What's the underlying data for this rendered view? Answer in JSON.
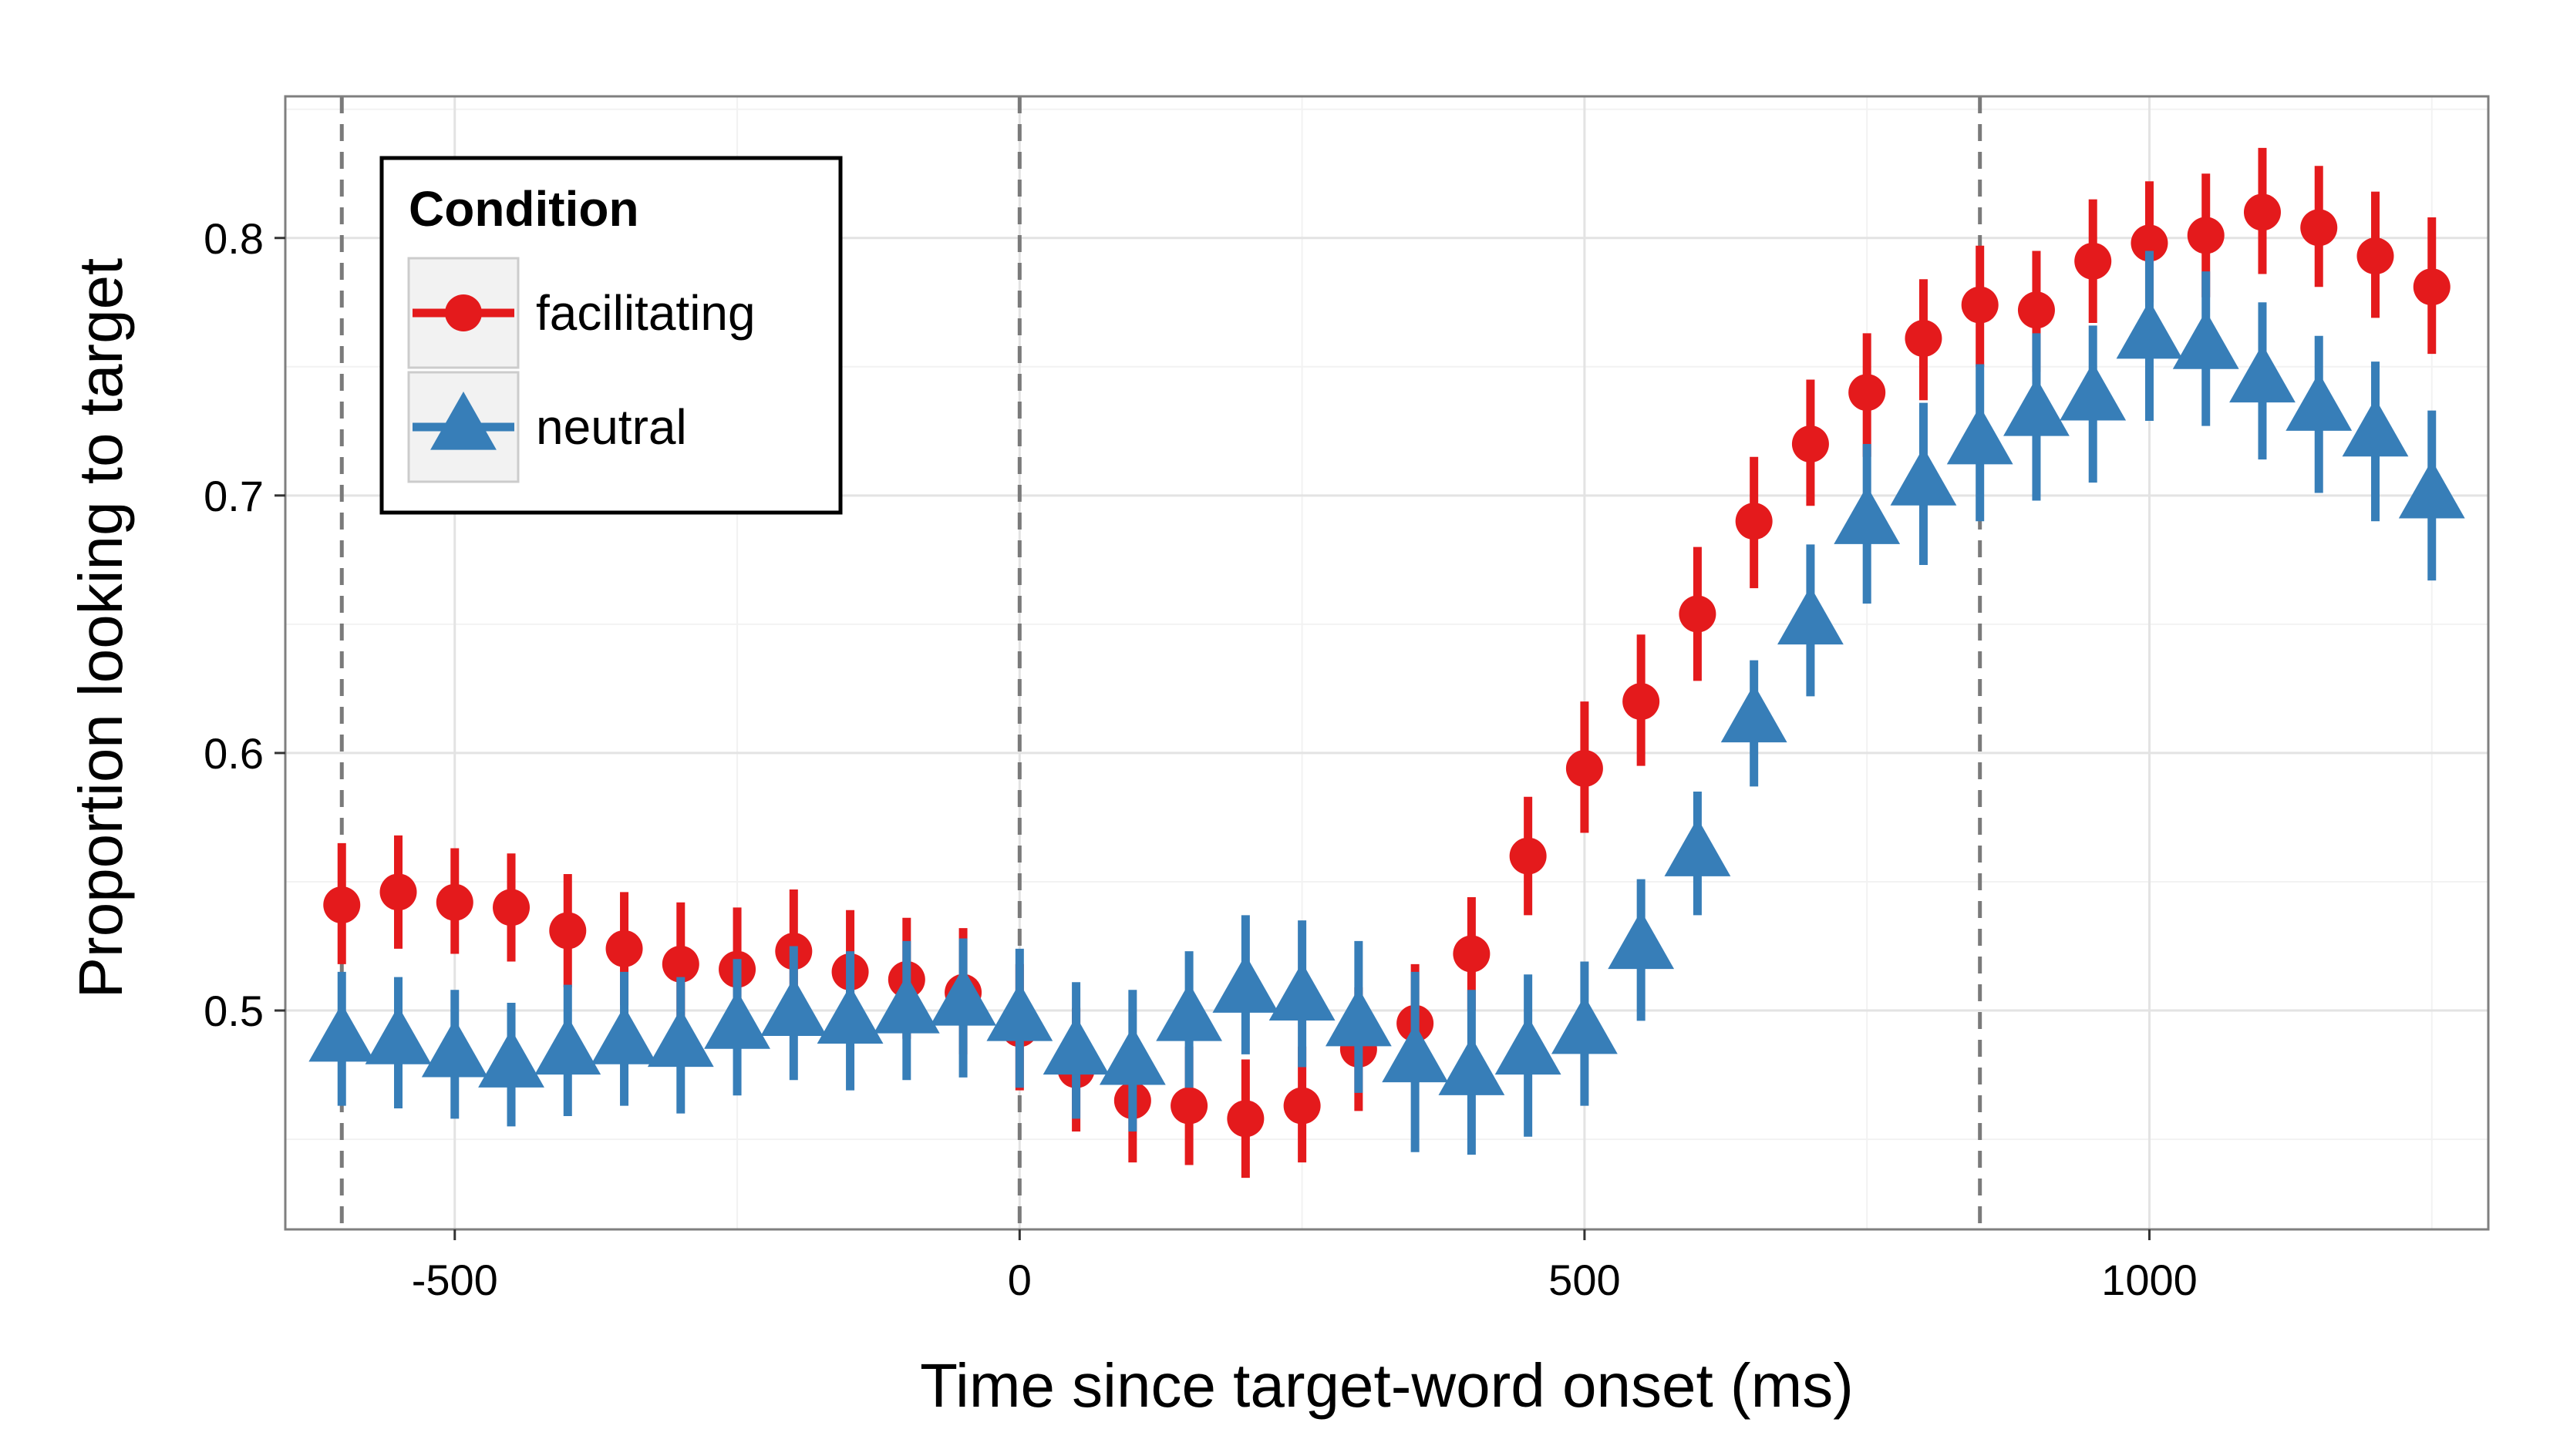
{
  "chart_data": {
    "type": "scatter",
    "xlabel": "Time since target-word onset (ms)",
    "ylabel": "Proportion looking to target",
    "xlim": [
      -650,
      1300
    ],
    "ylim": [
      0.415,
      0.855
    ],
    "xticks": [
      -500,
      0,
      500,
      1000
    ],
    "xtick_labels": [
      "-500",
      "0",
      "500",
      "1000"
    ],
    "yticks": [
      0.5,
      0.6,
      0.7,
      0.8
    ],
    "ytick_labels": [
      "0.5",
      "0.6",
      "0.7",
      "0.8"
    ],
    "vlines": [
      -600,
      0,
      850
    ],
    "grid": true,
    "legend": {
      "title": "Condition",
      "position": "top-left"
    },
    "x": [
      -600,
      -550,
      -500,
      -450,
      -400,
      -350,
      -300,
      -250,
      -200,
      -150,
      -100,
      -50,
      0,
      50,
      100,
      150,
      200,
      250,
      300,
      350,
      400,
      450,
      500,
      550,
      600,
      650,
      700,
      750,
      800,
      850,
      900,
      950,
      1000,
      1050,
      1100,
      1150,
      1200,
      1250
    ],
    "series": [
      {
        "name": "facilitating",
        "color": "#E41A1C",
        "marker": "circle",
        "values": [
          0.541,
          0.546,
          0.542,
          0.54,
          0.531,
          0.524,
          0.518,
          0.516,
          0.523,
          0.515,
          0.512,
          0.507,
          0.493,
          0.477,
          0.465,
          0.463,
          0.458,
          0.463,
          0.485,
          0.495,
          0.522,
          0.56,
          0.594,
          0.62,
          0.654,
          0.69,
          0.72,
          0.74,
          0.761,
          0.774,
          0.772,
          0.791,
          0.798,
          0.801,
          0.81,
          0.804,
          0.793,
          0.781
        ],
        "lower": [
          0.518,
          0.524,
          0.522,
          0.519,
          0.509,
          0.502,
          0.495,
          0.493,
          0.5,
          0.492,
          0.489,
          0.483,
          0.469,
          0.453,
          0.441,
          0.44,
          0.435,
          0.441,
          0.461,
          0.472,
          0.5,
          0.537,
          0.569,
          0.595,
          0.628,
          0.664,
          0.696,
          0.715,
          0.737,
          0.75,
          0.748,
          0.767,
          0.775,
          0.777,
          0.786,
          0.781,
          0.769,
          0.755
        ],
        "upper": [
          0.565,
          0.568,
          0.563,
          0.561,
          0.553,
          0.546,
          0.542,
          0.54,
          0.547,
          0.539,
          0.536,
          0.532,
          0.518,
          0.501,
          0.489,
          0.486,
          0.481,
          0.486,
          0.509,
          0.518,
          0.544,
          0.583,
          0.62,
          0.646,
          0.68,
          0.715,
          0.745,
          0.763,
          0.784,
          0.797,
          0.795,
          0.815,
          0.822,
          0.825,
          0.835,
          0.828,
          0.818,
          0.808
        ]
      },
      {
        "name": "neutral",
        "color": "#377EB8",
        "marker": "triangle",
        "values": [
          0.489,
          0.488,
          0.483,
          0.479,
          0.484,
          0.488,
          0.487,
          0.494,
          0.499,
          0.496,
          0.5,
          0.503,
          0.497,
          0.484,
          0.48,
          0.497,
          0.508,
          0.505,
          0.495,
          0.481,
          0.476,
          0.484,
          0.492,
          0.525,
          0.561,
          0.613,
          0.651,
          0.69,
          0.705,
          0.721,
          0.732,
          0.738,
          0.762,
          0.758,
          0.745,
          0.734,
          0.724,
          0.7
        ],
        "lower": [
          0.463,
          0.462,
          0.458,
          0.455,
          0.459,
          0.463,
          0.46,
          0.467,
          0.473,
          0.469,
          0.473,
          0.474,
          0.47,
          0.458,
          0.453,
          0.47,
          0.483,
          0.478,
          0.468,
          0.445,
          0.444,
          0.451,
          0.463,
          0.496,
          0.537,
          0.587,
          0.622,
          0.658,
          0.673,
          0.69,
          0.698,
          0.705,
          0.729,
          0.727,
          0.714,
          0.701,
          0.69,
          0.667
        ],
        "upper": [
          0.515,
          0.513,
          0.508,
          0.503,
          0.51,
          0.515,
          0.513,
          0.52,
          0.525,
          0.523,
          0.527,
          0.528,
          0.524,
          0.511,
          0.508,
          0.523,
          0.537,
          0.535,
          0.527,
          0.515,
          0.508,
          0.514,
          0.519,
          0.551,
          0.585,
          0.636,
          0.681,
          0.72,
          0.736,
          0.751,
          0.763,
          0.766,
          0.795,
          0.787,
          0.775,
          0.762,
          0.752,
          0.733
        ]
      }
    ]
  }
}
